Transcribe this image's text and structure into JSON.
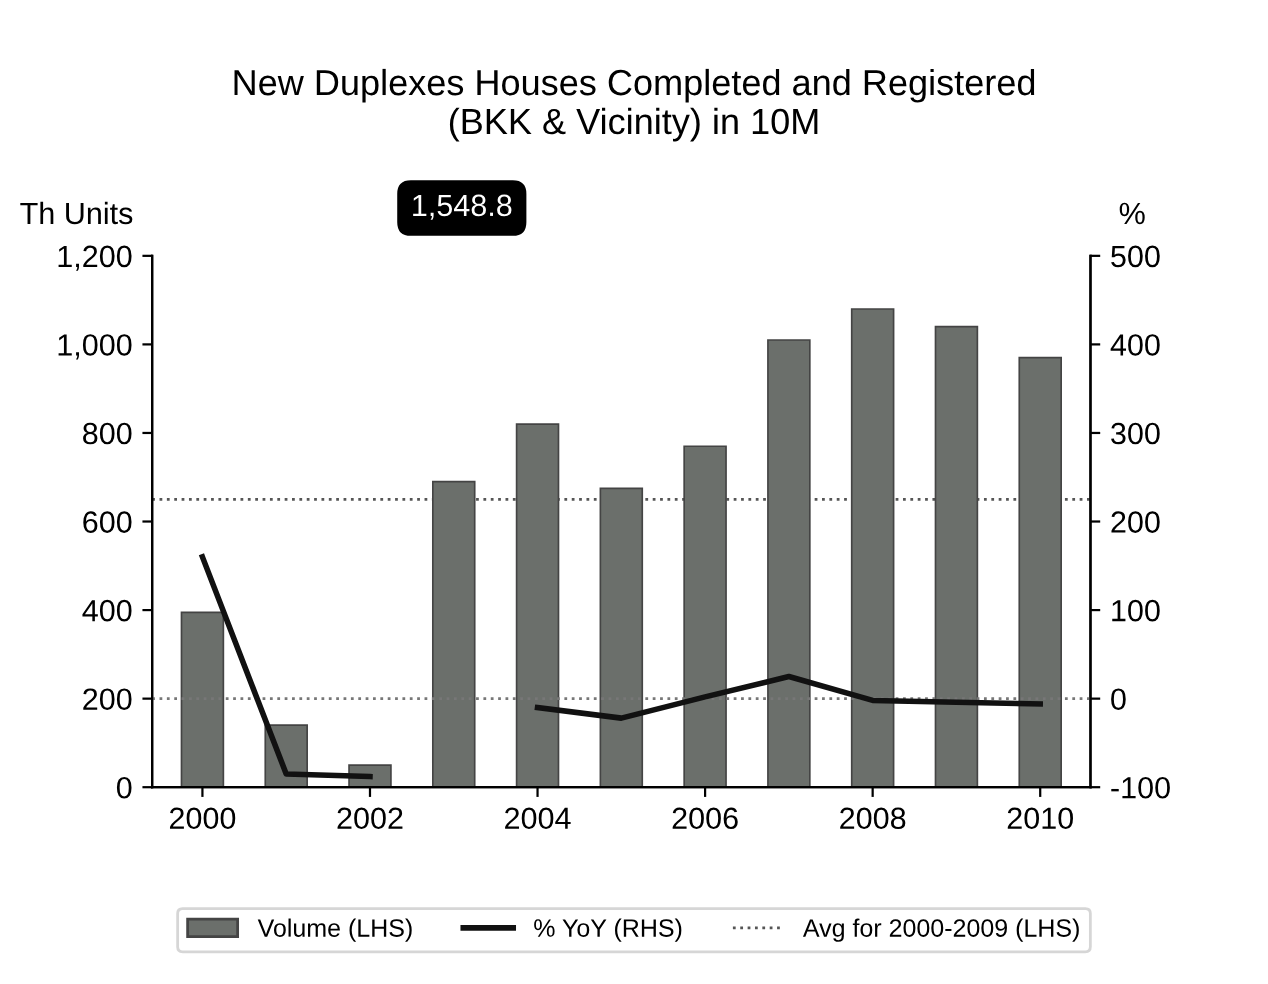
{
  "chart_data": {
    "type": "bar",
    "title": "New Duplexes Houses Completed and Registered\n(BKK & Vicinity) in 10M",
    "ylabel": "Th Units",
    "y2label": "%",
    "x": [
      2000,
      2001,
      2002,
      2003,
      2004,
      2005,
      2006,
      2007,
      2008,
      2009,
      2010
    ],
    "series": [
      {
        "name": "Volume (LHS)",
        "color": "#6b6f6b",
        "values": [
          395,
          140,
          50,
          690,
          820,
          675,
          770,
          1010,
          1080,
          1040,
          970
        ]
      },
      {
        "name": "% YoY (RHS)",
        "type": "line",
        "axis": "y2",
        "color": "#111111",
        "values": [
          160,
          -85,
          -88,
          null,
          -10,
          -22,
          2,
          25,
          -2,
          -4,
          -6
        ]
      }
    ],
    "annotations": [
      "1,548.8"
    ],
    "ref_lines": [
      {
        "axis": "y",
        "value": 650,
        "label": "Avg for 2000-2009 (LHS)",
        "color": "#555555",
        "line_style": "dotted"
      },
      {
        "axis": "y2",
        "value": 0,
        "color": "#777777",
        "line_style": "dotted"
      }
    ],
    "xlim": [
      1999.4,
      2010.6
    ],
    "xticks": [
      2000,
      2002,
      2004,
      2006,
      2008,
      2010
    ],
    "ylim": [
      0,
      1200
    ],
    "yticks": [
      {
        "value": 0,
        "label": "0"
      },
      {
        "value": 200,
        "label": "200"
      },
      {
        "value": 400,
        "label": "400"
      },
      {
        "value": 600,
        "label": "600"
      },
      {
        "value": 800,
        "label": "800"
      },
      {
        "value": 1000,
        "label": "1,000"
      },
      {
        "value": 1200,
        "label": "1,200"
      }
    ],
    "y2lim": [
      -100,
      500
    ],
    "y2ticks": [
      -100,
      0,
      100,
      200,
      300,
      400,
      500
    ],
    "legend": "bottom",
    "grid": false,
    "marker": "none",
    "line_style": "solid"
  }
}
